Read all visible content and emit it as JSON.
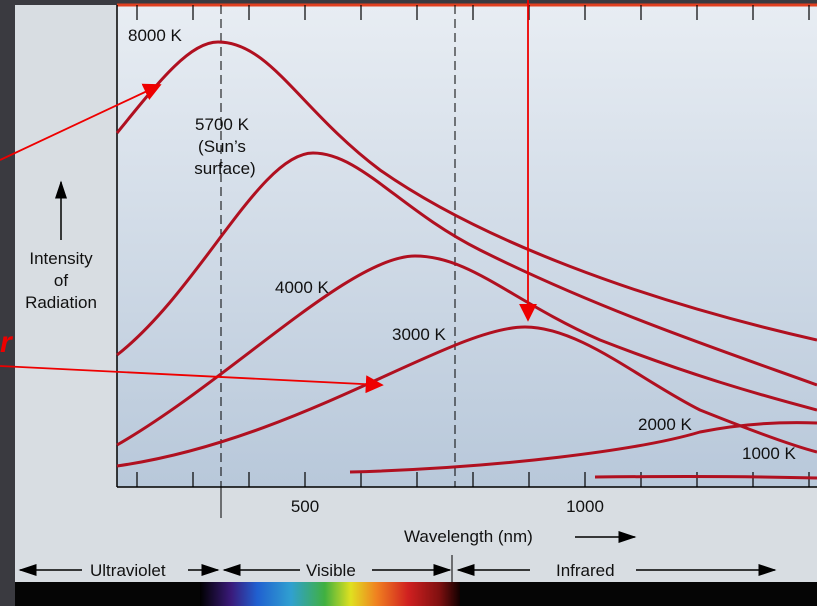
{
  "curves": [
    {
      "label": "8000 K"
    },
    {
      "label": "5700 K",
      "note": [
        "(Sun’s",
        "surface)"
      ]
    },
    {
      "label": "4000 K"
    },
    {
      "label": "3000 K"
    },
    {
      "label": "2000 K"
    },
    {
      "label": "1000 K"
    }
  ],
  "y_axis": {
    "label": [
      "Intensity",
      "of",
      "Radiation"
    ]
  },
  "x_axis": {
    "ticks": [
      "500",
      "1000"
    ],
    "label": "Wavelength (nm)"
  },
  "bands": [
    "Ultraviolet",
    "Visible",
    "Infrared"
  ],
  "marker": "r"
}
